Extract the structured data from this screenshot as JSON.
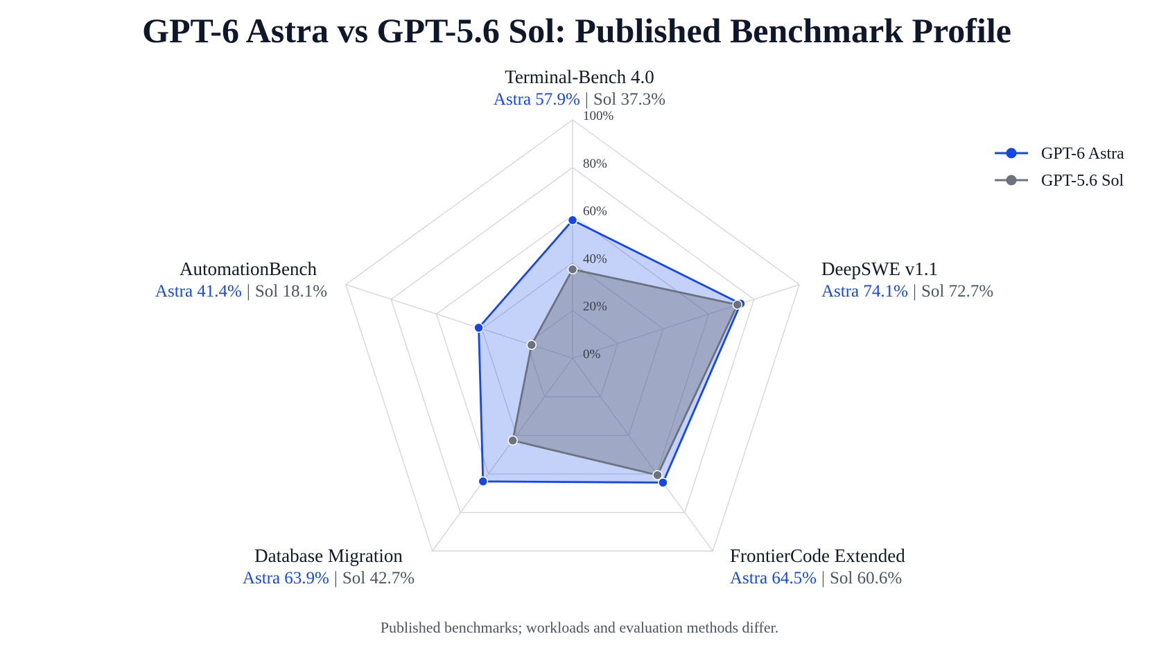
{
  "chart_data": {
    "type": "radar",
    "title": "GPT-6 Astra vs GPT-5.6 Sol: Published Benchmark Profile",
    "categories": [
      "Terminal-Bench 4.0",
      "DeepSWE v1.1",
      "FrontierCode Extended",
      "Database Migration",
      "AutomationBench"
    ],
    "series": [
      {
        "name": "GPT-6 Astra",
        "color": "#1447e6",
        "values": [
          57.9,
          74.1,
          64.5,
          63.9,
          41.4
        ]
      },
      {
        "name": "GPT-5.6 Sol",
        "color": "#6b7280",
        "values": [
          37.3,
          72.7,
          60.6,
          42.7,
          18.1
        ]
      }
    ],
    "value_labels": [
      {
        "astra": "Astra 57.9%",
        "sol": "Sol 37.3%"
      },
      {
        "astra": "Astra 74.1%",
        "sol": "Sol 72.7%"
      },
      {
        "astra": "Astra 64.5%",
        "sol": "Sol 60.6%"
      },
      {
        "astra": "Astra 63.9%",
        "sol": "Sol 42.7%"
      },
      {
        "astra": "Astra 41.4%",
        "sol": "Sol 18.1%"
      }
    ],
    "value_label_separator": "|",
    "radial_ticks": [
      0,
      20,
      40,
      60,
      80,
      100
    ],
    "radial_tick_labels": [
      "0%",
      "20%",
      "40%",
      "60%",
      "80%",
      "100%"
    ],
    "rlim": [
      0,
      100
    ],
    "grid": true,
    "legend_position": "top-right"
  },
  "footnote": "Published benchmarks; workloads and evaluation methods differ.",
  "colors": {
    "grid": "#d4d4d8",
    "point_outline": "#ffffff"
  }
}
